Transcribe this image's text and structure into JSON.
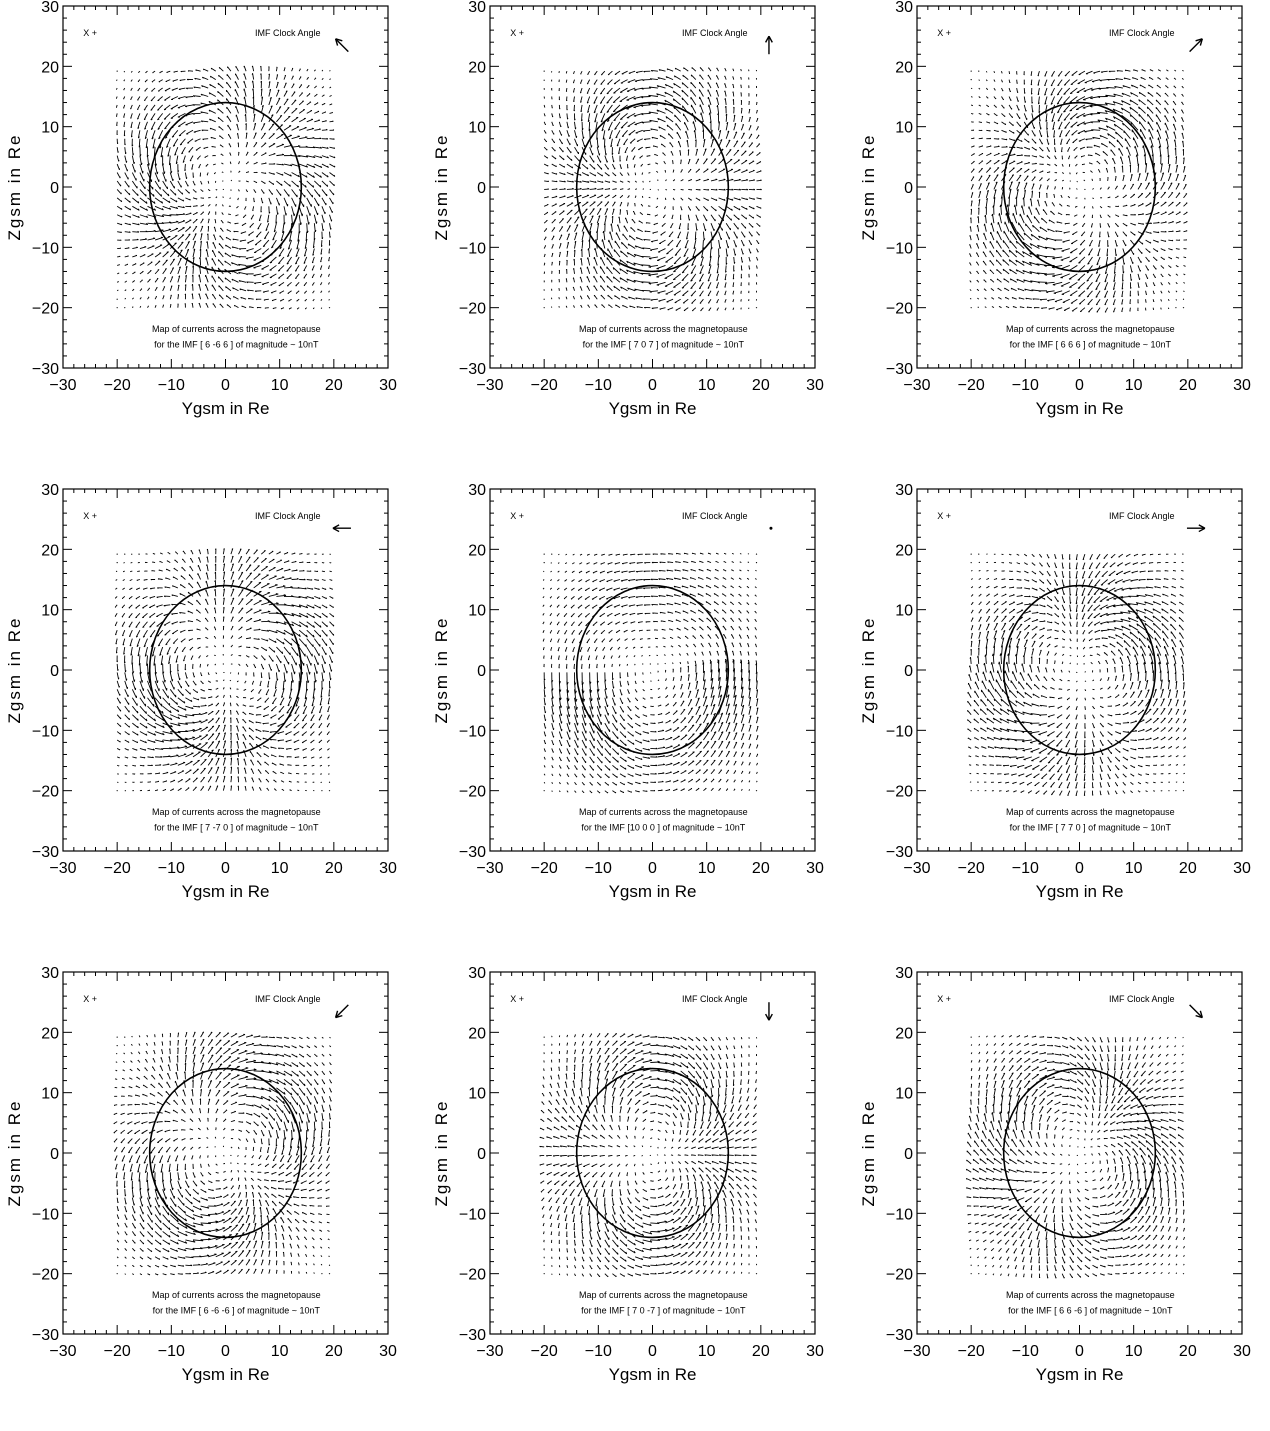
{
  "chart_data": [
    {
      "type": "vector-field",
      "xlabel": "Ygsm in Re",
      "ylabel": "Zgsm in Re",
      "xlim": [
        -30,
        30
      ],
      "ylim": [
        -30,
        30
      ],
      "xticks": [
        -30,
        -20,
        -10,
        0,
        10,
        20,
        30
      ],
      "yticks": [
        -30,
        -20,
        -10,
        0,
        10,
        20,
        30
      ],
      "corner_label": "X  +",
      "clock_title": "IMF Clock Angle",
      "imf": [
        6,
        -6,
        6
      ],
      "imf_text": "for the IMF [ 6     -6      6  ]  of magnitude ~ 10nT",
      "caption": "Map of currents across the magnetopause",
      "magnetopause_radius": 14
    },
    {
      "type": "vector-field",
      "xlabel": "Ygsm in Re",
      "ylabel": "Zgsm in Re",
      "xlim": [
        -30,
        30
      ],
      "ylim": [
        -30,
        30
      ],
      "xticks": [
        -30,
        -20,
        -10,
        0,
        10,
        20,
        30
      ],
      "yticks": [
        -30,
        -20,
        -10,
        0,
        10,
        20,
        30
      ],
      "corner_label": "X  +",
      "clock_title": "IMF Clock Angle",
      "imf": [
        7,
        0,
        7
      ],
      "imf_text": "for the IMF [ 7      0      7  ]  of magnitude ~ 10nT",
      "caption": "Map of currents across the magnetopause",
      "magnetopause_radius": 14
    },
    {
      "type": "vector-field",
      "xlabel": "Ygsm in Re",
      "ylabel": "Zgsm in Re",
      "xlim": [
        -30,
        30
      ],
      "ylim": [
        -30,
        30
      ],
      "xticks": [
        -30,
        -20,
        -10,
        0,
        10,
        20,
        30
      ],
      "yticks": [
        -30,
        -20,
        -10,
        0,
        10,
        20,
        30
      ],
      "corner_label": "X  +",
      "clock_title": "IMF Clock Angle",
      "imf": [
        6,
        6,
        6
      ],
      "imf_text": "for the IMF [ 6      6      6  ]  of magnitude ~ 10nT",
      "caption": "Map of currents across the magnetopause",
      "magnetopause_radius": 14
    },
    {
      "type": "vector-field",
      "xlabel": "Ygsm in Re",
      "ylabel": "Zgsm in Re",
      "xlim": [
        -30,
        30
      ],
      "ylim": [
        -30,
        30
      ],
      "xticks": [
        -30,
        -20,
        -10,
        0,
        10,
        20,
        30
      ],
      "yticks": [
        -30,
        -20,
        -10,
        0,
        10,
        20,
        30
      ],
      "corner_label": "X  +",
      "clock_title": "IMF Clock Angle",
      "imf": [
        7,
        -7,
        0
      ],
      "imf_text": "for the IMF [ 7     -7      0  ]  of magnitude ~ 10nT",
      "caption": "Map of currents across the magnetopause",
      "magnetopause_radius": 14
    },
    {
      "type": "vector-field",
      "xlabel": "Ygsm in Re",
      "ylabel": "Zgsm in Re",
      "xlim": [
        -30,
        30
      ],
      "ylim": [
        -30,
        30
      ],
      "xticks": [
        -30,
        -20,
        -10,
        0,
        10,
        20,
        30
      ],
      "yticks": [
        -30,
        -20,
        -10,
        0,
        10,
        20,
        30
      ],
      "corner_label": "X  +",
      "clock_title": "IMF Clock Angle",
      "imf": [
        10,
        0,
        0
      ],
      "imf_text": "for the IMF [10      0      0  ]  of magnitude ~ 10nT",
      "caption": "Map of currents across the magnetopause",
      "magnetopause_radius": 14
    },
    {
      "type": "vector-field",
      "xlabel": "Ygsm in Re",
      "ylabel": "Zgsm in Re",
      "xlim": [
        -30,
        30
      ],
      "ylim": [
        -30,
        30
      ],
      "xticks": [
        -30,
        -20,
        -10,
        0,
        10,
        20,
        30
      ],
      "yticks": [
        -30,
        -20,
        -10,
        0,
        10,
        20,
        30
      ],
      "corner_label": "X  +",
      "clock_title": "IMF Clock Angle",
      "imf": [
        7,
        7,
        0
      ],
      "imf_text": "for the IMF [ 7      7      0  ]  of magnitude ~ 10nT",
      "caption": "Map of currents across the magnetopause",
      "magnetopause_radius": 14
    },
    {
      "type": "vector-field",
      "xlabel": "Ygsm in Re",
      "ylabel": "Zgsm in Re",
      "xlim": [
        -30,
        30
      ],
      "ylim": [
        -30,
        30
      ],
      "xticks": [
        -30,
        -20,
        -10,
        0,
        10,
        20,
        30
      ],
      "yticks": [
        -30,
        -20,
        -10,
        0,
        10,
        20,
        30
      ],
      "corner_label": "X  +",
      "clock_title": "IMF Clock Angle",
      "imf": [
        6,
        -6,
        -6
      ],
      "imf_text": "for the IMF [ 6     -6     -6  ]  of magnitude ~ 10nT",
      "caption": "Map of currents across the magnetopause",
      "magnetopause_radius": 14
    },
    {
      "type": "vector-field",
      "xlabel": "Ygsm in Re",
      "ylabel": "Zgsm in Re",
      "xlim": [
        -30,
        30
      ],
      "ylim": [
        -30,
        30
      ],
      "xticks": [
        -30,
        -20,
        -10,
        0,
        10,
        20,
        30
      ],
      "yticks": [
        -30,
        -20,
        -10,
        0,
        10,
        20,
        30
      ],
      "corner_label": "X  +",
      "clock_title": "IMF Clock Angle",
      "imf": [
        7,
        0,
        -7
      ],
      "imf_text": "for the IMF [ 7      0     -7  ]  of magnitude ~ 10nT",
      "caption": "Map of currents across the magnetopause",
      "magnetopause_radius": 14
    },
    {
      "type": "vector-field",
      "xlabel": "Ygsm in Re",
      "ylabel": "Zgsm in Re",
      "xlim": [
        -30,
        30
      ],
      "ylim": [
        -30,
        30
      ],
      "xticks": [
        -30,
        -20,
        -10,
        0,
        10,
        20,
        30
      ],
      "yticks": [
        -30,
        -20,
        -10,
        0,
        10,
        20,
        30
      ],
      "corner_label": "X  +",
      "clock_title": "IMF Clock Angle",
      "imf": [
        6,
        6,
        -6
      ],
      "imf_text": "for the IMF [ 6      6     -6  ]  of magnitude ~ 10nT",
      "caption": "Map of currents across the magnetopause",
      "magnetopause_radius": 14
    }
  ]
}
